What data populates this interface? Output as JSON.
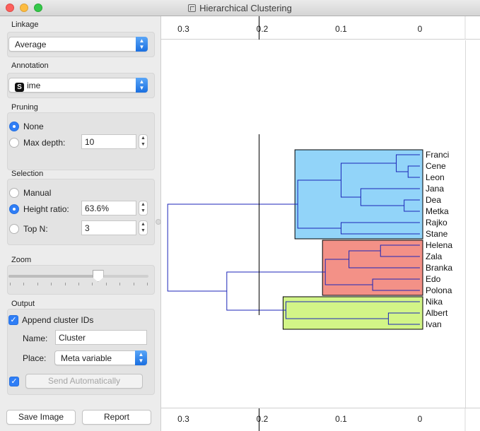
{
  "window": {
    "title": "Hierarchical Clustering"
  },
  "linkage": {
    "section_title": "Linkage",
    "value": "Average"
  },
  "annotation": {
    "section_title": "Annotation",
    "icon_letter": "S",
    "value": "ime"
  },
  "pruning": {
    "section_title": "Pruning",
    "none_label": "None",
    "max_depth_label": "Max depth:",
    "max_depth_value": "10",
    "selected": "None"
  },
  "selection": {
    "section_title": "Selection",
    "manual_label": "Manual",
    "height_ratio_label": "Height ratio:",
    "height_ratio_value": "63.6%",
    "top_n_label": "Top N:",
    "top_n_value": "3",
    "selected": "Height ratio"
  },
  "zoom": {
    "section_title": "Zoom",
    "level": 0.64
  },
  "output": {
    "section_title": "Output",
    "append_label": "Append cluster IDs",
    "append_checked": true,
    "name_label": "Name:",
    "name_value": "Cluster",
    "place_label": "Place:",
    "place_value": "Meta variable",
    "auto_checked": true,
    "send_label": "Send Automatically"
  },
  "footer": {
    "save_image_label": "Save Image",
    "report_label": "Report"
  },
  "axis": {
    "ticks": [
      "0.3",
      "0.2",
      "0.1",
      "0"
    ],
    "cut_height": 0.204
  },
  "colors": {
    "cluster1": "#92d4f9",
    "cluster2": "#f39187",
    "cluster3": "#d2f587",
    "tree_line": "#1c26b8",
    "accent": "#2f7ef6"
  },
  "dendrogram": {
    "leaves": [
      "Franci",
      "Cene",
      "Leon",
      "Jana",
      "Dea",
      "Metka",
      "Rajko",
      "Stane",
      "Helena",
      "Zala",
      "Branka",
      "Edo",
      "Polona",
      "Nika",
      "Albert",
      "Ivan"
    ],
    "merges": [
      {
        "a": 1,
        "b": 2,
        "h": 0.015
      },
      {
        "a": 0,
        "b": 16,
        "h": 0.03
      },
      {
        "a": 4,
        "b": 5,
        "h": 0.02
      },
      {
        "a": 3,
        "b": 18,
        "h": 0.075
      },
      {
        "a": 17,
        "b": 19,
        "h": 0.1
      },
      {
        "a": 6,
        "b": 7,
        "h": 0.1
      },
      {
        "a": 20,
        "b": 21,
        "h": 0.155
      },
      {
        "a": 8,
        "b": 9,
        "h": 0.05
      },
      {
        "a": 10,
        "b": 23,
        "h": 0.09
      },
      {
        "a": 11,
        "b": 12,
        "h": 0.06
      },
      {
        "a": 24,
        "b": 25,
        "h": 0.12
      },
      {
        "a": 14,
        "b": 15,
        "h": 0.04
      },
      {
        "a": 13,
        "b": 27,
        "h": 0.17
      },
      {
        "a": 26,
        "b": 28,
        "h": 0.245
      },
      {
        "a": 22,
        "b": 29,
        "h": 0.32
      }
    ],
    "clusters": [
      {
        "root": 22,
        "first": 0,
        "last": 7,
        "color": "#92d4f9"
      },
      {
        "root": 26,
        "first": 8,
        "last": 12,
        "color": "#f39187"
      },
      {
        "root": 28,
        "first": 13,
        "last": 15,
        "color": "#d2f587"
      }
    ]
  }
}
